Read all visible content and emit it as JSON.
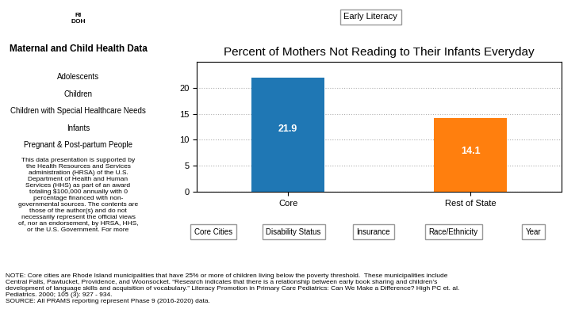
{
  "chart_data": {
    "type": "bar",
    "title": "Percent of Mothers Not Reading to Their Infants Everyday",
    "categories": [
      "Core",
      "Rest of State"
    ],
    "values": [
      21.9,
      14.1
    ],
    "value_labels": [
      "21.9",
      "14.1"
    ],
    "data_labels": true,
    "ylim": [
      0,
      25
    ],
    "yticks": [
      0,
      5,
      10,
      15,
      20
    ],
    "grid": true,
    "annotations": {
      "tab": "Early Literacy",
      "logo": "RI\nDOH",
      "sidebar_title": "Maternal and Child Health Data",
      "menu": [
        "Adolescents",
        "Children",
        "Children with Special Healthcare Needs",
        "Infants",
        "Pregnant & Post-partum People"
      ],
      "disclaimer": "This data presentation is supported by\nthe Health Resources and Services\nadministration (HRSA) of the U.S.\nDepartment of Health and Human\nServices (HHS) as part of an award\ntotaling $100,000 annually with 0\npercentage financed with non-\ngovernmental sources. The contents are\nthose of the author(s) and do not\nnecessarily represent the official views\nof, nor an endorsement, by HRSA, HHS,\nor the U.S. Government. For more",
      "buttons": [
        "Core Cities",
        "Disability Status",
        "Insurance",
        "Race/Ethnicity",
        "Year"
      ],
      "note": "NOTE: Core cities are Rhode Island municipalities that have 25% or more of children living below the poverty threshold.  These municipalities include\nCentral Falls, Pawtucket, Providence, and Woonsocket. “Research indicates that there is a relationship between early book sharing and children’s\ndevelopment of language skills and acquisition of vocabulary.” Literacy Promotion in Primary Care Pediatrics: Can We Make a Difference? High PC et. al.\nPediatrics. 2000; 105 (3): 927 - 934.\nSOURCE: All PRAMS reporting represent Phase 9 (2016-2020) data."
    }
  }
}
